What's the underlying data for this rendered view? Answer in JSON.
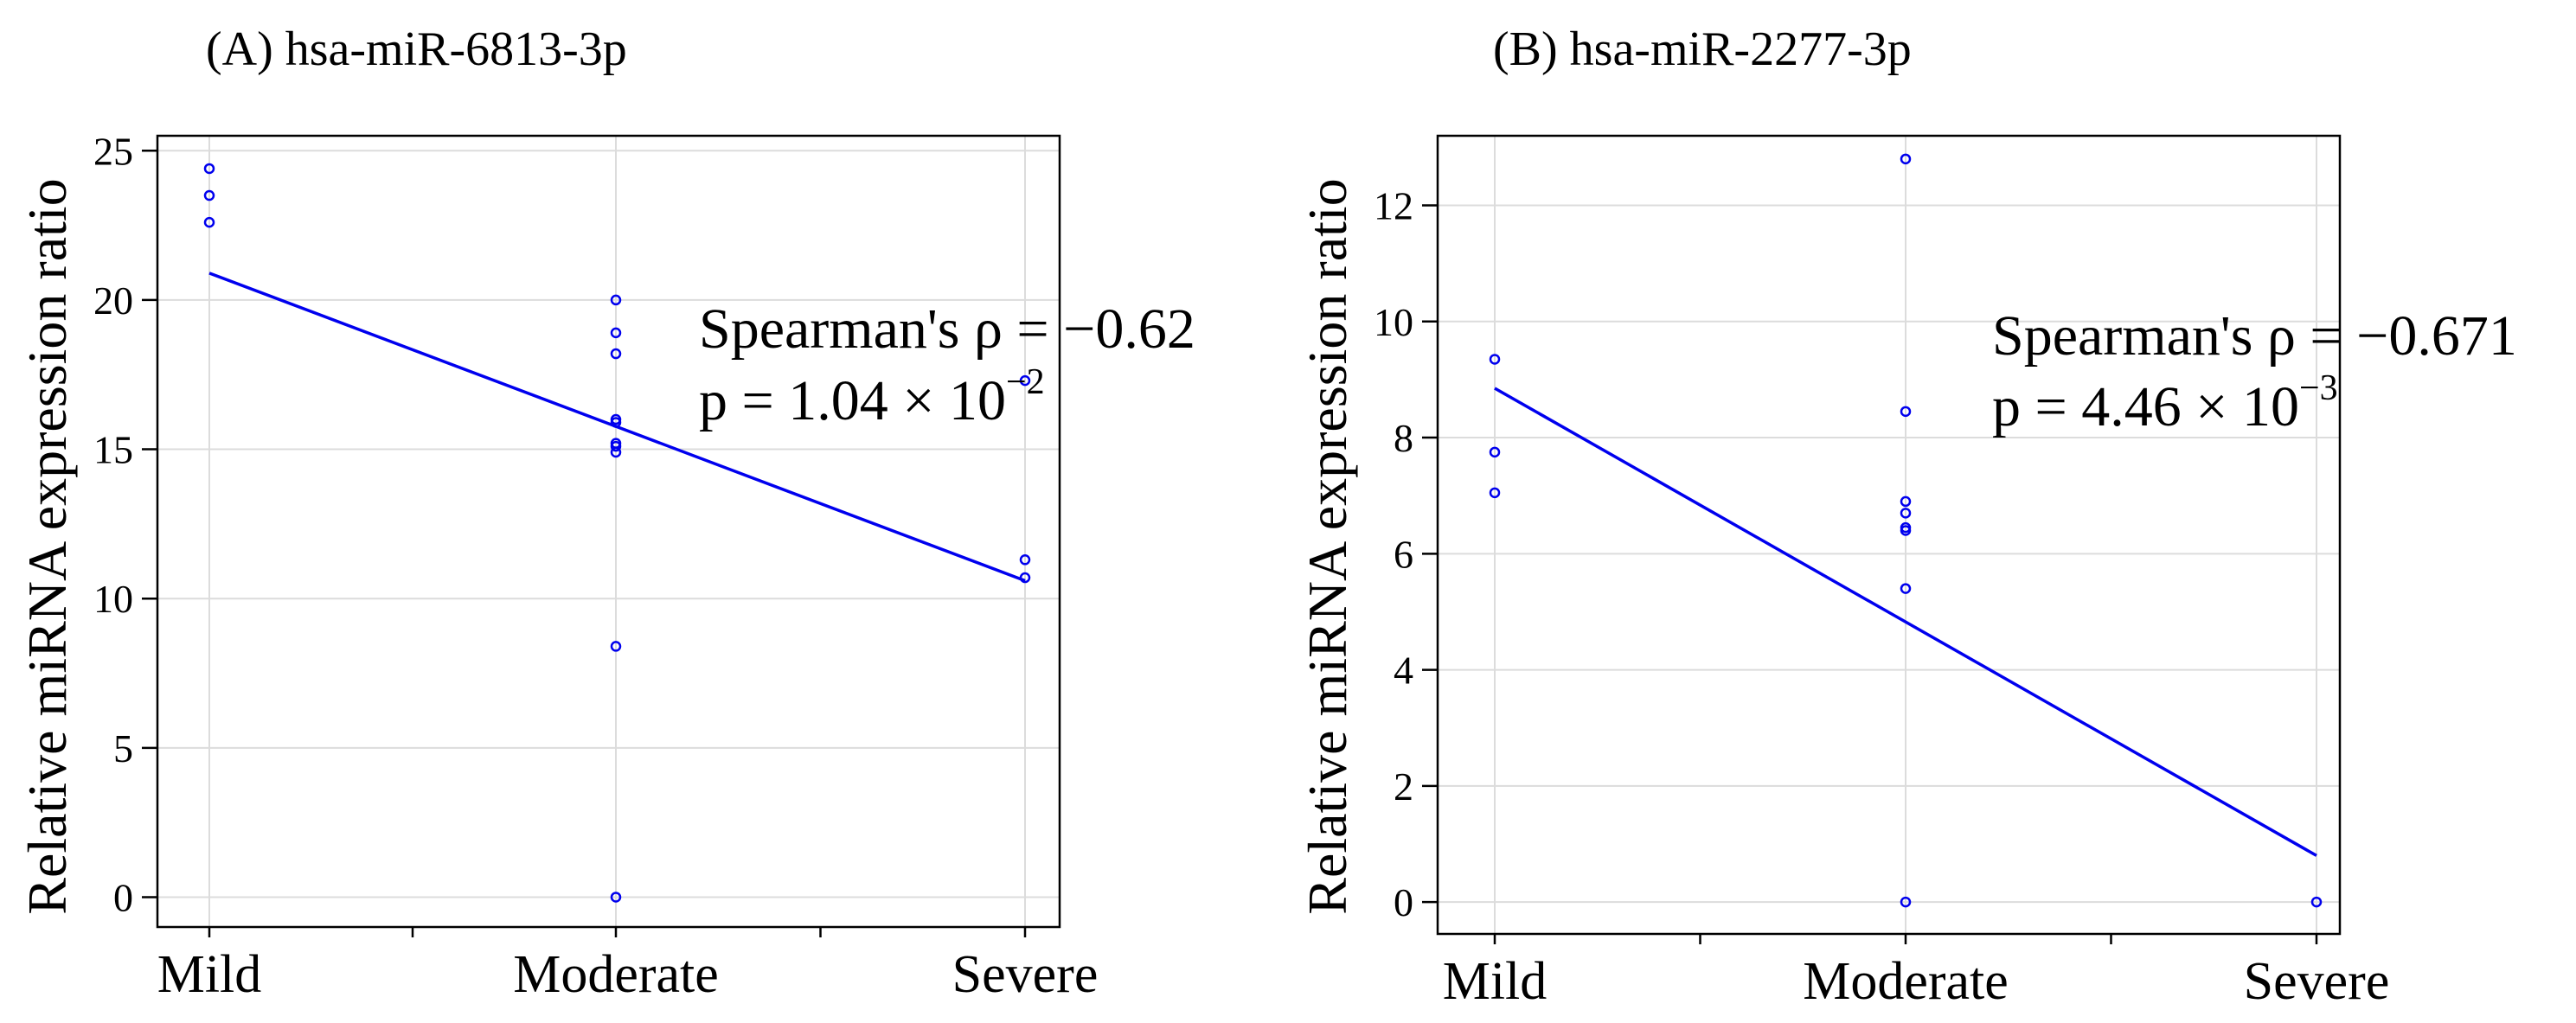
{
  "colors": {
    "series": "#0000ee",
    "grid": "#dcdcdc",
    "axis": "#000000"
  },
  "chart_data": [
    {
      "type": "scatter",
      "title": "(A)  hsa-miR-6813-3p",
      "xlabel": "",
      "ylabel": "Relative miRNA expression ratio",
      "categories": [
        "Mild",
        "Moderate",
        "Severe"
      ],
      "ylim": [
        -1,
        25.5
      ],
      "yticks": [
        0,
        5,
        10,
        15,
        20,
        25
      ],
      "grid": true,
      "points": [
        {
          "x": "Mild",
          "y": 24.4
        },
        {
          "x": "Mild",
          "y": 23.5
        },
        {
          "x": "Mild",
          "y": 22.6
        },
        {
          "x": "Moderate",
          "y": 20.0
        },
        {
          "x": "Moderate",
          "y": 18.9
        },
        {
          "x": "Moderate",
          "y": 18.2
        },
        {
          "x": "Moderate",
          "y": 16.0
        },
        {
          "x": "Moderate",
          "y": 15.9
        },
        {
          "x": "Moderate",
          "y": 15.2
        },
        {
          "x": "Moderate",
          "y": 15.1
        },
        {
          "x": "Moderate",
          "y": 14.9
        },
        {
          "x": "Moderate",
          "y": 8.4
        },
        {
          "x": "Moderate",
          "y": 0.0
        },
        {
          "x": "Severe",
          "y": 17.3
        },
        {
          "x": "Severe",
          "y": 11.3
        },
        {
          "x": "Severe",
          "y": 10.7
        }
      ],
      "fit_line": {
        "x": [
          "Mild",
          "Severe"
        ],
        "y": [
          20.9,
          10.6
        ]
      },
      "annotation": {
        "line1": "Spearman's ρ = −0.62",
        "line2_base": "p = 1.04  ×  10",
        "line2_exp": "−2"
      }
    },
    {
      "type": "scatter",
      "title": "(B)  hsa-miR-2277-3p",
      "xlabel": "",
      "ylabel": "Relative miRNA expression ratio",
      "categories": [
        "Mild",
        "Moderate",
        "Severe"
      ],
      "ylim": [
        -0.55,
        13.2
      ],
      "yticks": [
        0,
        2,
        4,
        6,
        8,
        10,
        12
      ],
      "grid": true,
      "points": [
        {
          "x": "Mild",
          "y": 9.35
        },
        {
          "x": "Mild",
          "y": 7.75
        },
        {
          "x": "Mild",
          "y": 7.05
        },
        {
          "x": "Moderate",
          "y": 12.8
        },
        {
          "x": "Moderate",
          "y": 8.45
        },
        {
          "x": "Moderate",
          "y": 6.9
        },
        {
          "x": "Moderate",
          "y": 6.7
        },
        {
          "x": "Moderate",
          "y": 6.45
        },
        {
          "x": "Moderate",
          "y": 6.4
        },
        {
          "x": "Moderate",
          "y": 5.4
        },
        {
          "x": "Moderate",
          "y": 0.0
        },
        {
          "x": "Severe",
          "y": 0.0
        }
      ],
      "fit_line": {
        "x": [
          "Mild",
          "Severe"
        ],
        "y": [
          8.85,
          0.8
        ]
      },
      "annotation": {
        "line1": "Spearman's ρ = −0.671",
        "line2_base": "p = 4.46  ×  10",
        "line2_exp": "−3"
      }
    }
  ]
}
